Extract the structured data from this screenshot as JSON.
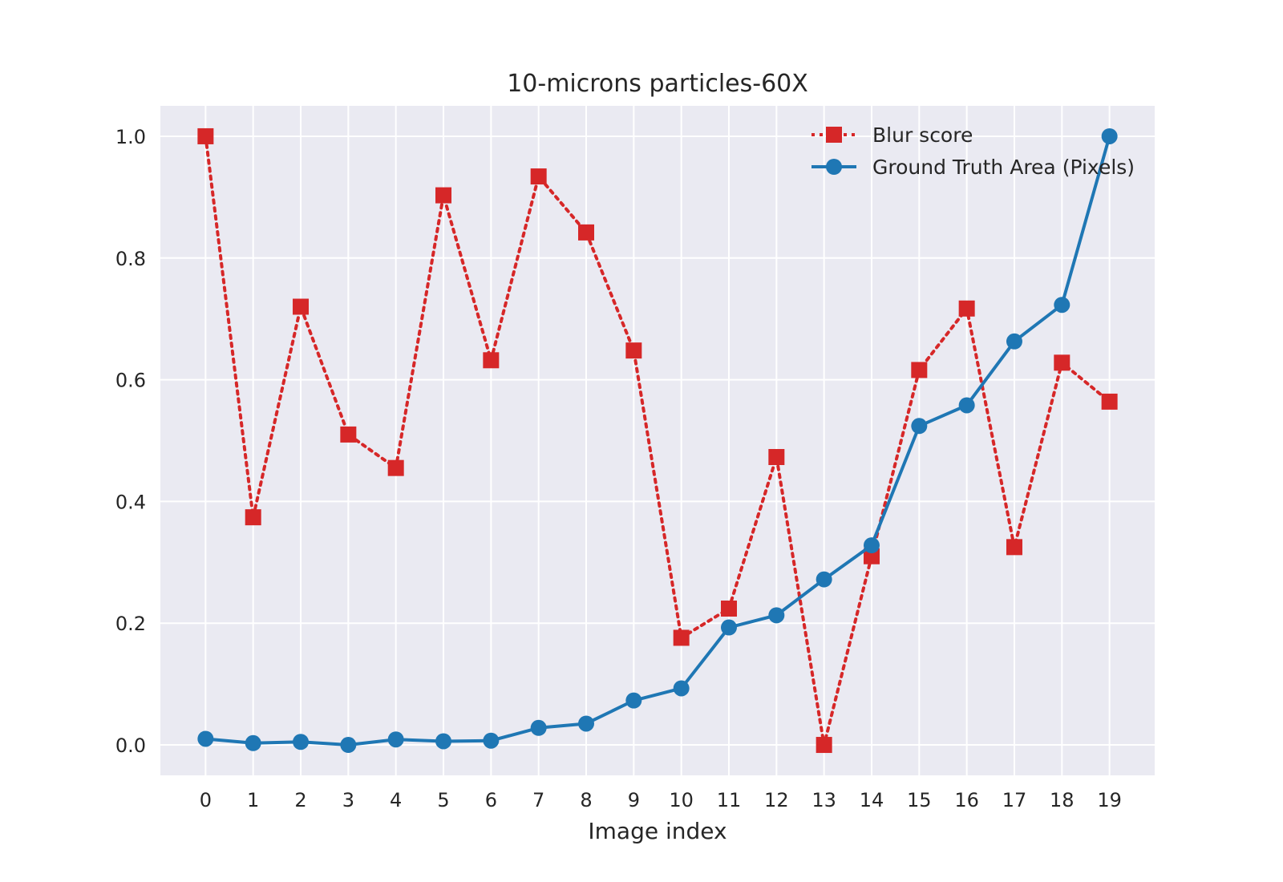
{
  "chart_data": {
    "type": "line",
    "title": "10-microns particles-60X",
    "xlabel": "Image index",
    "ylabel": "",
    "x": [
      0,
      1,
      2,
      3,
      4,
      5,
      6,
      7,
      8,
      9,
      10,
      11,
      12,
      13,
      14,
      15,
      16,
      17,
      18,
      19
    ],
    "xlim": [
      -0.95,
      19.95
    ],
    "ylim": [
      -0.05,
      1.05
    ],
    "xticks": [
      0,
      1,
      2,
      3,
      4,
      5,
      6,
      7,
      8,
      9,
      10,
      11,
      12,
      13,
      14,
      15,
      16,
      17,
      18,
      19
    ],
    "yticks": [
      0.0,
      0.2,
      0.4,
      0.6,
      0.8,
      1.0
    ],
    "xtick_labels": [
      "0",
      "1",
      "2",
      "3",
      "4",
      "5",
      "6",
      "7",
      "8",
      "9",
      "10",
      "11",
      "12",
      "13",
      "14",
      "15",
      "16",
      "17",
      "18",
      "19"
    ],
    "ytick_labels": [
      "0.0",
      "0.2",
      "0.4",
      "0.6",
      "0.8",
      "1.0"
    ],
    "grid": true,
    "legend_position": "top-right",
    "series": [
      {
        "name": "Blur score",
        "color": "#d62728",
        "line_style": "dotted",
        "marker": "square",
        "values": [
          1.0,
          0.374,
          0.72,
          0.51,
          0.455,
          0.903,
          0.632,
          0.934,
          0.842,
          0.648,
          0.176,
          0.224,
          0.473,
          0.0,
          0.31,
          0.616,
          0.717,
          0.325,
          0.628,
          0.564
        ]
      },
      {
        "name": "Ground Truth Area (Pixels)",
        "color": "#1f77b4",
        "line_style": "solid",
        "marker": "circle",
        "values": [
          0.01,
          0.003,
          0.005,
          0.0,
          0.009,
          0.006,
          0.007,
          0.028,
          0.035,
          0.073,
          0.093,
          0.193,
          0.213,
          0.272,
          0.328,
          0.524,
          0.558,
          0.663,
          0.723,
          1.0
        ]
      }
    ]
  }
}
